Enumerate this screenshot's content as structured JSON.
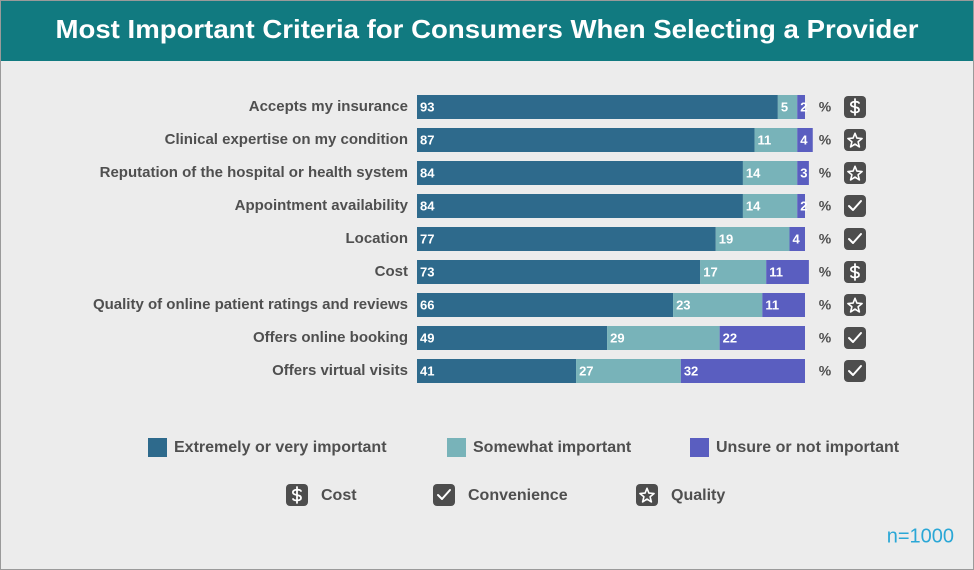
{
  "chart_data": {
    "type": "stacked-bar-horizontal",
    "title": "Most Important Criteria for Consumers When Selecting a Provider",
    "categories": [
      "Accepts my insurance",
      "Clinical expertise on my condition",
      "Reputation of the hospital or health system",
      "Appointment availability",
      "Location",
      "Cost",
      "Quality of online patient ratings and reviews",
      "Offers online booking",
      "Offers virtual visits"
    ],
    "series": [
      {
        "name": "Extremely or very important",
        "color": "#2e6a8c",
        "values": [
          93,
          87,
          84,
          84,
          77,
          73,
          66,
          49,
          41
        ]
      },
      {
        "name": "Somewhat important",
        "color": "#78b3b9",
        "values": [
          5,
          11,
          14,
          14,
          19,
          17,
          23,
          29,
          27
        ]
      },
      {
        "name": "Unsure or not important",
        "color": "#5a5ec0",
        "values": [
          2,
          4,
          3,
          2,
          4,
          11,
          11,
          22,
          32
        ]
      }
    ],
    "xlim": [
      0,
      100
    ],
    "unit": "%",
    "groups": [
      {
        "name": "Cost",
        "icon": "dollar"
      },
      {
        "name": "Convenience",
        "icon": "check"
      },
      {
        "name": "Quality",
        "icon": "star"
      }
    ],
    "category_groups": [
      "Cost",
      "Quality",
      "Quality",
      "Convenience",
      "Convenience",
      "Cost",
      "Quality",
      "Convenience",
      "Convenience"
    ],
    "note": "n=1000"
  }
}
